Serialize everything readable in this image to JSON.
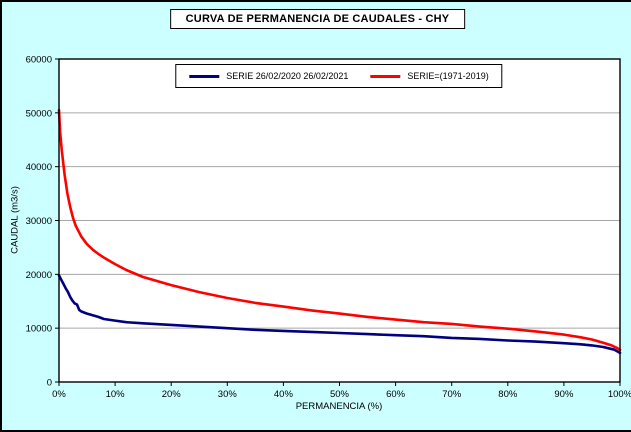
{
  "colors": {
    "chart_background": "#CCFFFF",
    "plot_background": "#FFFFFF",
    "grid": "#A6A6A6",
    "axis": "#000000"
  },
  "chart_data": {
    "type": "line",
    "title": "CURVA DE PERMANENCIA DE CAUDALES - CHY",
    "xlabel": "PERMANENCIA (%)",
    "ylabel": "CAUDAL (m3/s)",
    "xlim": [
      0,
      100
    ],
    "ylim": [
      0,
      60000
    ],
    "grid": "horizontal-only",
    "legend_position": "top-center-inside",
    "x_tick_values": [
      0,
      10,
      20,
      30,
      40,
      50,
      60,
      70,
      80,
      90,
      100
    ],
    "x_tick_labels": [
      "0%",
      "10%",
      "20%",
      "30%",
      "40%",
      "50%",
      "60%",
      "70%",
      "80%",
      "90%",
      "100%"
    ],
    "y_tick_values": [
      0,
      10000,
      20000,
      30000,
      40000,
      50000,
      60000
    ],
    "y_tick_labels": [
      "0",
      "10000",
      "20000",
      "30000",
      "40000",
      "50000",
      "60000"
    ],
    "series": [
      {
        "name": "SERIE 26/02/2020 26/02/2021",
        "color": "#000080",
        "x": [
          0,
          0.4,
          0.8,
          1.2,
          1.6,
          2,
          2.4,
          2.8,
          3.2,
          3.6,
          4,
          5,
          6,
          7,
          8,
          10,
          12,
          15,
          20,
          25,
          30,
          35,
          40,
          45,
          50,
          55,
          60,
          65,
          70,
          75,
          80,
          85,
          90,
          93,
          95,
          97,
          99,
          100
        ],
        "y": [
          19800,
          19000,
          18200,
          17400,
          16700,
          15800,
          15100,
          14600,
          14400,
          13400,
          13100,
          12700,
          12400,
          12100,
          11700,
          11400,
          11100,
          10900,
          10600,
          10300,
          10000,
          9700,
          9500,
          9300,
          9100,
          8900,
          8700,
          8500,
          8200,
          8000,
          7700,
          7500,
          7200,
          7000,
          6800,
          6500,
          6000,
          5400
        ]
      },
      {
        "name": "SERIE=(1971-2019)",
        "color": "#FF0000",
        "x": [
          0,
          0.2,
          0.5,
          1,
          1.5,
          2,
          2.5,
          3,
          4,
          5,
          6,
          7,
          8,
          10,
          12,
          15,
          20,
          25,
          30,
          35,
          40,
          45,
          50,
          55,
          60,
          65,
          70,
          75,
          80,
          85,
          90,
          93,
          95,
          97,
          98.5,
          99.5,
          100
        ],
        "y": [
          50500,
          46500,
          43000,
          38500,
          35000,
          32500,
          30500,
          29000,
          27000,
          25600,
          24600,
          23800,
          23100,
          21900,
          20800,
          19500,
          18000,
          16700,
          15600,
          14700,
          14000,
          13300,
          12700,
          12100,
          11600,
          11100,
          10800,
          10300,
          9900,
          9400,
          8800,
          8300,
          7900,
          7300,
          6800,
          6300,
          6000
        ]
      }
    ]
  }
}
